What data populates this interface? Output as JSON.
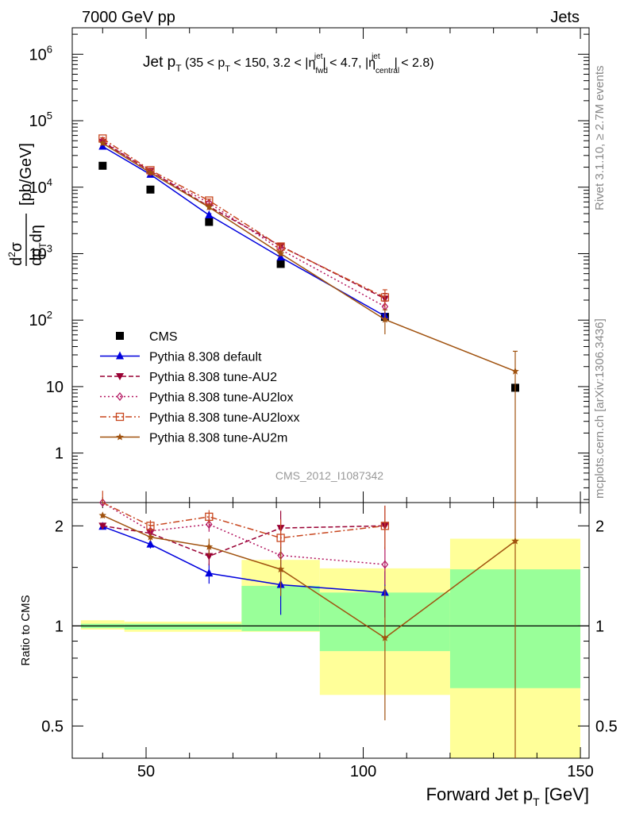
{
  "header": {
    "left": "7000 GeV pp",
    "right": "Jets"
  },
  "side_labels": {
    "rivet": "Rivet 3.1.10, ≥ 2.7M events",
    "mcplots": "mcplots.cern.ch [arXiv:1306.3436]"
  },
  "analysis_id": "CMS_2012_I1087342",
  "colors": {
    "cms": "#000000",
    "default": "#0000dd",
    "au2": "#990033",
    "au2lox": "#b3155f",
    "au2loxx": "#c8471f",
    "au2m": "#a0520f",
    "band_inner": "#99ff99",
    "band_outer": "#ffff99"
  },
  "chart_data": [
    {
      "type": "line",
      "title_parts": [
        "Jet p",
        "T",
        " (35 < p",
        "T",
        " < 150, 3.2 < |η",
        "fwd",
        "jet",
        "| < 4.7, |η",
        "central",
        "jet",
        "| < 2.8)"
      ],
      "ylabel_parts": [
        "d",
        "2",
        "σ",
        "dp",
        "T",
        "dη",
        "[pb/GeV]"
      ],
      "yscale": "log",
      "xlim": [
        33,
        152
      ],
      "ylim": [
        0.18,
        2500000
      ],
      "y_ticks": [
        {
          "v": 1,
          "label": "1"
        },
        {
          "v": 10,
          "label": "10"
        },
        {
          "v": 100,
          "label": "10",
          "exp": "2"
        },
        {
          "v": 1000,
          "label": "10",
          "exp": "3"
        },
        {
          "v": 10000,
          "label": "10",
          "exp": "4"
        },
        {
          "v": 100000,
          "label": "10",
          "exp": "5"
        },
        {
          "v": 1000000,
          "label": "10",
          "exp": "6"
        }
      ],
      "legend_position": "lower-left",
      "series": [
        {
          "name": "CMS",
          "key": "cms",
          "marker": "square",
          "x": [
            40,
            51,
            64.5,
            81,
            105,
            135
          ],
          "y": [
            21000,
            9200,
            3000,
            700,
            112,
            9.6
          ]
        },
        {
          "name": "Pythia 8.308 default",
          "key": "default",
          "marker": "triangle-up",
          "dash": "",
          "x": [
            40,
            51,
            64.5,
            81,
            105
          ],
          "y": [
            41000,
            15500,
            3800,
            880,
            115
          ],
          "err": [
            0.03,
            0.03,
            0.05,
            0.08,
            0.1
          ]
        },
        {
          "name": "Pythia 8.308 tune-AU2",
          "key": "au2",
          "marker": "triangle-down",
          "dash": "6,3",
          "x": [
            40,
            51,
            64.5,
            81,
            105
          ],
          "y": [
            48000,
            17500,
            5100,
            1300,
            210
          ],
          "err": [
            0.03,
            0.03,
            0.05,
            0.08,
            0.2
          ]
        },
        {
          "name": "Pythia 8.308 tune-AU2lox",
          "key": "au2lox",
          "marker": "diamond",
          "dash": "2,3",
          "x": [
            40,
            51,
            64.5,
            81,
            105
          ],
          "y": [
            50000,
            17000,
            5800,
            1150,
            160
          ],
          "err": [
            0.03,
            0.03,
            0.05,
            0.08,
            0.2
          ]
        },
        {
          "name": "Pythia 8.308 tune-AU2loxx",
          "key": "au2loxx",
          "marker": "square-open",
          "dash": "8,3,2,3",
          "x": [
            40,
            51,
            64.5,
            81,
            105
          ],
          "y": [
            54000,
            18000,
            6300,
            1280,
            220
          ],
          "err": [
            0.03,
            0.03,
            0.05,
            0.08,
            0.3
          ]
        },
        {
          "name": "Pythia 8.308 tune-AU2m",
          "key": "au2m",
          "marker": "star",
          "dash": "",
          "x": [
            40,
            51,
            64.5,
            81,
            105,
            135
          ],
          "y": [
            46000,
            16500,
            5000,
            1000,
            102,
            17
          ],
          "err": [
            0.03,
            0.03,
            0.05,
            0.08,
            0.4,
            1.0
          ]
        }
      ]
    },
    {
      "type": "line",
      "ylabel": "Ratio to CMS",
      "xlabel_parts": [
        "Forward Jet p",
        "T",
        " [GeV]"
      ],
      "yscale": "log",
      "xlim": [
        33,
        152
      ],
      "ylim": [
        0.4,
        2.35
      ],
      "x_ticks": [
        50,
        100,
        150
      ],
      "y_ticks": [
        {
          "v": 0.5,
          "label": "0.5"
        },
        {
          "v": 1,
          "label": "1"
        },
        {
          "v": 2,
          "label": "2"
        }
      ],
      "bands": [
        {
          "x": [
            35,
            45
          ],
          "inner": [
            0.985,
            1.015
          ],
          "outer": [
            0.975,
            1.04
          ]
        },
        {
          "x": [
            45,
            72
          ],
          "inner": [
            0.975,
            1.015
          ],
          "outer": [
            0.96,
            1.03
          ]
        },
        {
          "x": [
            72,
            90
          ],
          "inner": [
            0.965,
            1.32
          ],
          "outer": [
            0.96,
            1.58
          ]
        },
        {
          "x": [
            90,
            120
          ],
          "inner": [
            0.84,
            1.26
          ],
          "outer": [
            0.62,
            1.49
          ]
        },
        {
          "x": [
            120,
            150
          ],
          "inner": [
            0.65,
            1.48
          ],
          "outer": [
            0.4,
            1.83
          ]
        }
      ],
      "series": [
        {
          "key": "default",
          "marker": "triangle-up",
          "dash": "",
          "x": [
            40,
            51,
            64.5,
            81,
            105
          ],
          "y": [
            1.99,
            1.76,
            1.44,
            1.33,
            1.26
          ],
          "err": [
            0.04,
            0.05,
            0.1,
            0.25,
            0.2
          ]
        },
        {
          "key": "au2",
          "marker": "triangle-down",
          "dash": "6,3",
          "x": [
            40,
            51,
            64.5,
            81,
            105
          ],
          "y": [
            2.0,
            1.9,
            1.62,
            1.97,
            2.0
          ],
          "err": [
            0.04,
            0.05,
            0.1,
            0.25,
            0.3
          ]
        },
        {
          "key": "au2lox",
          "marker": "diamond",
          "dash": "2,3",
          "x": [
            40,
            51,
            64.5,
            81,
            105
          ],
          "y": [
            2.35,
            1.93,
            2.02,
            1.63,
            1.53
          ],
          "err": [
            0.05,
            0.05,
            0.1,
            0.25,
            0.2
          ]
        },
        {
          "key": "au2loxx",
          "marker": "square-open",
          "dash": "8,3,2,3",
          "x": [
            40,
            51,
            64.5,
            81,
            105
          ],
          "y": [
            2.6,
            2.0,
            2.13,
            1.84,
            2.0
          ],
          "err": [
            0.05,
            0.08,
            0.1,
            0.25,
            0.3
          ]
        },
        {
          "key": "au2m",
          "marker": "star",
          "dash": "",
          "x": [
            40,
            51,
            64.5,
            81,
            105,
            135
          ],
          "y": [
            2.15,
            1.85,
            1.73,
            1.48,
            0.92,
            1.8
          ],
          "err": [
            0.04,
            0.05,
            0.1,
            0.25,
            0.4,
            1.5
          ]
        }
      ]
    }
  ]
}
